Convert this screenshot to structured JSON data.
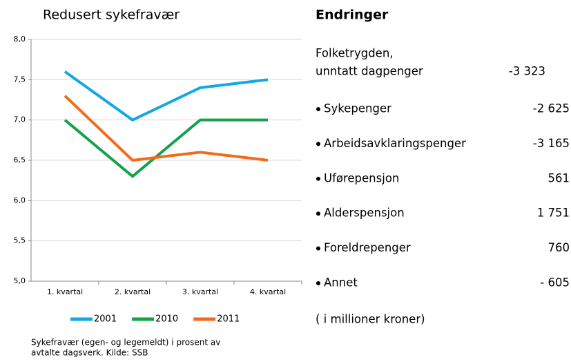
{
  "chart_data": {
    "type": "line",
    "title": "Redusert sykefravær",
    "categories": [
      "1. kvartal",
      "2. kvartal",
      "3. kvartal",
      "4. kvartal"
    ],
    "series": [
      {
        "name": "2001",
        "color": "#12a9e3",
        "values": [
          7.6,
          7.0,
          7.4,
          7.5
        ]
      },
      {
        "name": "2010",
        "color": "#12a34a",
        "values": [
          7.0,
          6.3,
          7.0,
          7.0
        ]
      },
      {
        "name": "2011",
        "color": "#f26b1d",
        "values": [
          7.3,
          6.5,
          6.6,
          6.5
        ]
      }
    ],
    "ylim": [
      5,
      8
    ],
    "yticks": [
      {
        "value": 5,
        "label": "5,0"
      },
      {
        "value": 5.5,
        "label": "5,5"
      },
      {
        "value": 6,
        "label": "6,0"
      },
      {
        "value": 6.5,
        "label": "6,5"
      },
      {
        "value": 7,
        "label": "7,0"
      },
      {
        "value": 7.5,
        "label": "7,5"
      },
      {
        "value": 8,
        "label": "8,0"
      }
    ],
    "grid": true,
    "legend": "bottom",
    "caption": [
      "Sykefravær (egen- og legemeldt) i prosent av",
      "avtalte dagsverk. Kilde: SSB"
    ]
  },
  "changes": {
    "title": "Endringer",
    "total": {
      "label": [
        "Folketrygden,",
        "unntatt dagpenger"
      ],
      "value": "-3 323"
    },
    "items": [
      {
        "label": "Sykepenger",
        "value": "-2 625"
      },
      {
        "label": "Arbeidsavklaringspenger",
        "value": "-3 165"
      },
      {
        "label": "Uførepensjon",
        "value": "561"
      },
      {
        "label": "Alderspensjon",
        "value": "1 751"
      },
      {
        "label": "Foreldrepenger",
        "value": "760"
      },
      {
        "label": "Annet",
        "value": "- 605"
      }
    ],
    "note": "( i millioner kroner)"
  }
}
